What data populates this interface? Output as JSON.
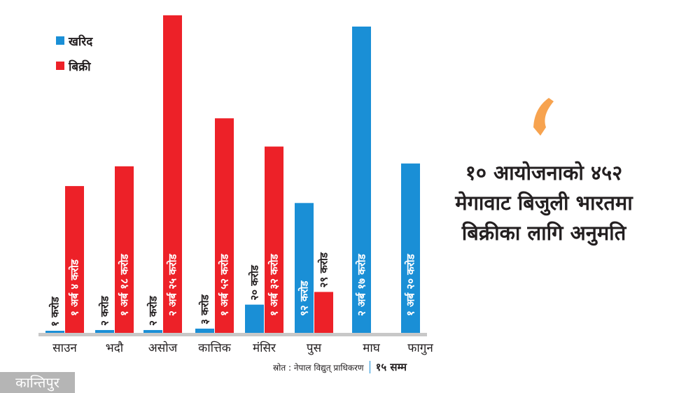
{
  "colors": {
    "purchase": "#1a8fd6",
    "sale": "#ed2128",
    "axis": "#c8c8c8",
    "accent_quote": "#f7a34f",
    "logo_bg": "#b5b5b5"
  },
  "legend": {
    "purchase_label": "खरिद",
    "sale_label": "बिक्री"
  },
  "headline": {
    "lines": [
      "१० आयोजनाको ४५२",
      "मेगावाट बिजुली भारतमा",
      "बिक्रीका लागि अनुमति"
    ]
  },
  "source": {
    "text": "स्रोत : नेपाल विद्युत् प्राधिकरण",
    "as_of": "१५ सम्म"
  },
  "logo": {
    "text": "कान्तिपुर"
  },
  "chart_data": {
    "type": "bar",
    "title": "",
    "xlabel": "",
    "ylabel": "",
    "unit": "करोड (NPR crore)",
    "categories": [
      "साउन",
      "भदौ",
      "असोज",
      "कात्तिक",
      "मंसिर",
      "पुस",
      "माघ",
      "फागुन"
    ],
    "series": [
      {
        "name": "खरिद",
        "values": [
          1,
          2,
          2,
          3,
          20,
          92,
          217,
          120
        ],
        "labels": [
          "१ करोड",
          "२ करोड",
          "२ करोड",
          "३ करोड",
          "२० करोड",
          "९२ करोड",
          "२ अर्ब १७ करोड",
          "१ अर्ब २० करोड"
        ]
      },
      {
        "name": "बिक्री",
        "values": [
          104,
          118,
          225,
          152,
          132,
          29,
          null,
          null
        ],
        "labels": [
          "१ अर्ब ४ करोड",
          "१ अर्ब १८ करोड",
          "२ अर्ब २५ करोड",
          "१ अर्ब ५२ करोड",
          "१ अर्ब ३२ करोड",
          "२९ करोड",
          "",
          ""
        ]
      }
    ],
    "ylim": [
      0,
      217
    ],
    "grid": false,
    "legend_position": "top-left"
  }
}
